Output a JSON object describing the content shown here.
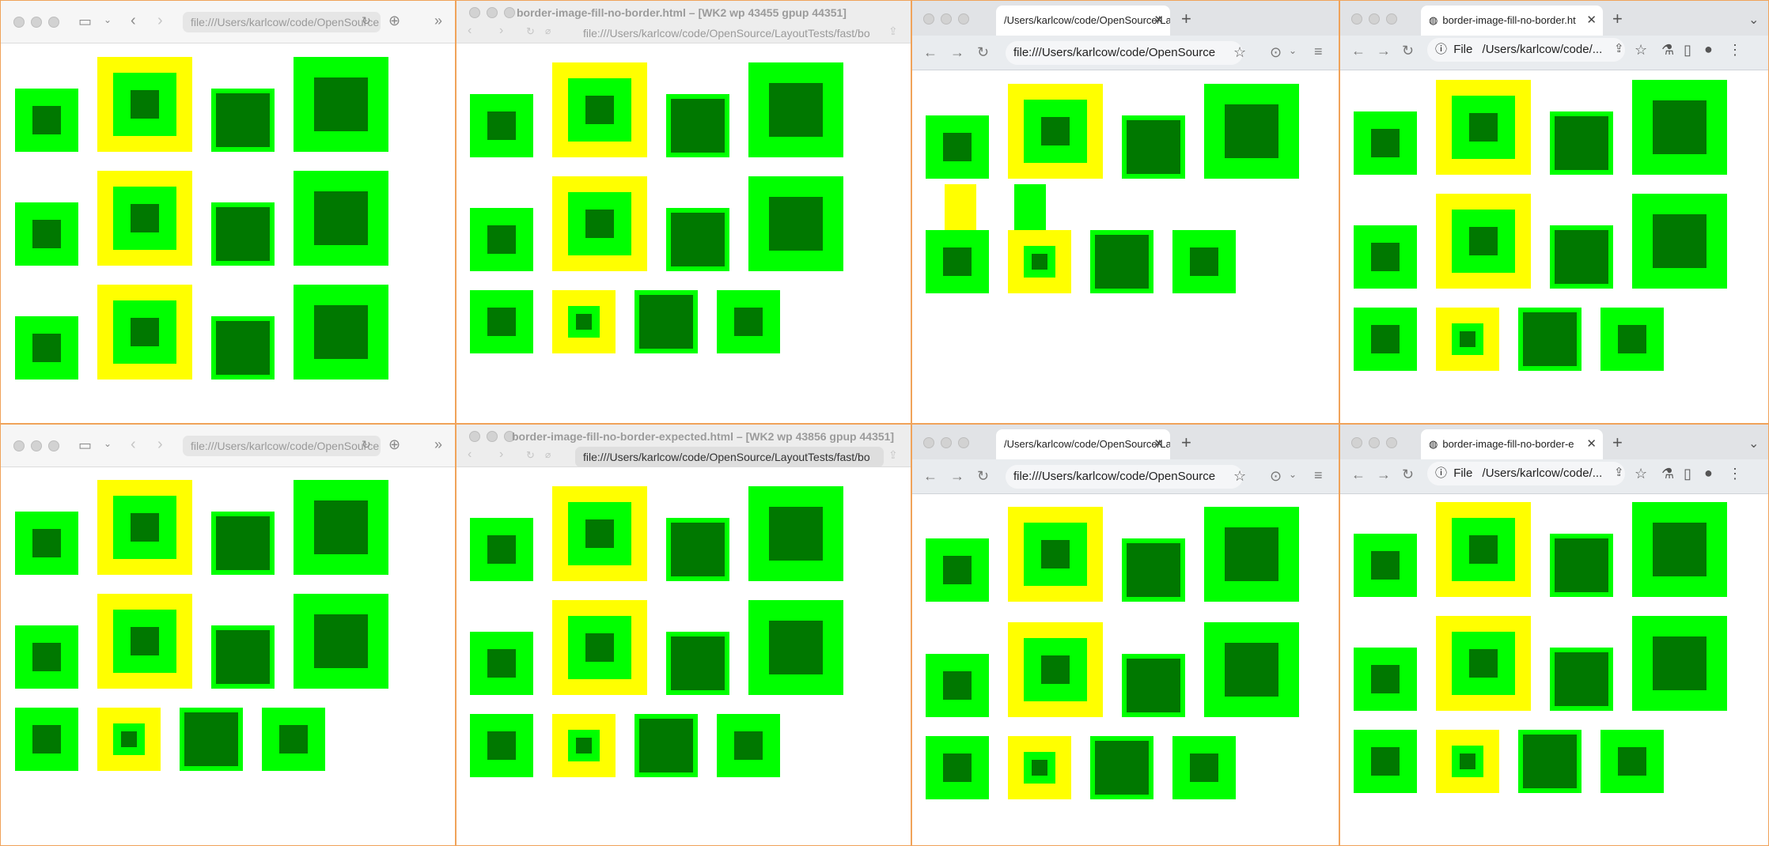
{
  "colors": {
    "desktop": "#f0a35a",
    "bright_green": "#00ff00",
    "yellow": "#ffff00",
    "dark_green": "#007800"
  },
  "windows": {
    "w1": {
      "kind": "safari",
      "address": "file:///Users/karlcow/code/OpenSource"
    },
    "w2": {
      "kind": "webkit-minibrowser",
      "title": "border-image-fill-no-border.html – [WK2 wp 43455 gpup 44351]",
      "address": "file:///Users/karlcow/code/OpenSource/LayoutTests/fast/bo"
    },
    "w3": {
      "kind": "chrome",
      "tab_title": "/Users/karlcow/code/OpenSource/La",
      "address": "file:///Users/karlcow/code/OpenSource"
    },
    "w4": {
      "kind": "chrome",
      "tab_title": "border-image-fill-no-border.ht",
      "file_chip": "File",
      "address": "/Users/karlcow/code/..."
    },
    "w5": {
      "kind": "safari",
      "address": "file:///Users/karlcow/code/OpenSource"
    },
    "w6": {
      "kind": "webkit-minibrowser",
      "title": "border-image-fill-no-border-expected.html – [WK2 wp 43856 gpup 44351]",
      "address": "file:///Users/karlcow/code/OpenSource/LayoutTests/fast/bo"
    },
    "w7": {
      "kind": "chrome",
      "tab_title": "/Users/karlcow/code/OpenSource/La",
      "address": "file:///Users/karlcow/code/OpenSource"
    },
    "w8": {
      "kind": "chrome",
      "tab_title": "border-image-fill-no-border-e",
      "file_chip": "File",
      "address": "/Users/karlcow/code/..."
    }
  }
}
